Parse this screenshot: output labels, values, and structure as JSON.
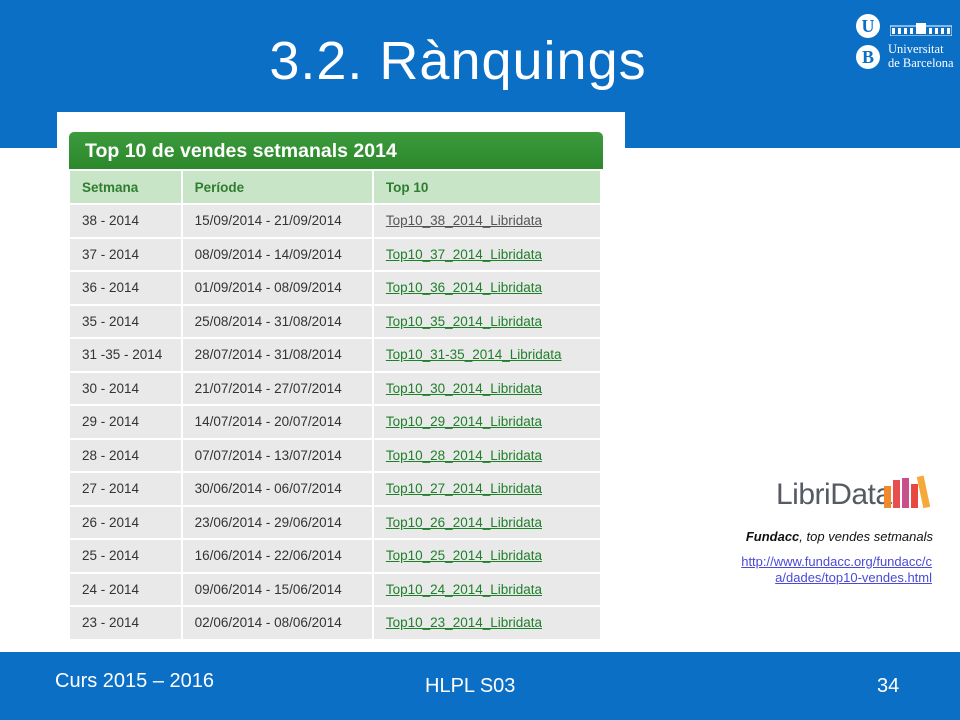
{
  "slide": {
    "title": "3.2. Rànquings",
    "logo": {
      "letters": [
        "U",
        "B"
      ],
      "text_line1": "Universitat",
      "text_line2": "de Barcelona",
      "icon": "university-building-icon"
    }
  },
  "screenshot": {
    "header": "Top 10 de vendes setmanals 2014",
    "columns": [
      "Setmana",
      "Període",
      "Top 10"
    ],
    "rows": [
      [
        "38 - 2014",
        "15/09/2014 - 21/09/2014",
        "Top10_38_2014_Libridata"
      ],
      [
        "37 - 2014",
        "08/09/2014 - 14/09/2014",
        "Top10_37_2014_Libridata"
      ],
      [
        "36 - 2014",
        "01/09/2014 - 08/09/2014",
        "Top10_36_2014_Libridata"
      ],
      [
        "35 - 2014",
        "25/08/2014 - 31/08/2014",
        "Top10_35_2014_Libridata"
      ],
      [
        "31 -35 - 2014",
        "28/07/2014 - 31/08/2014",
        "Top10_31-35_2014_Libridata"
      ],
      [
        "30 - 2014",
        "21/07/2014 - 27/07/2014",
        "Top10_30_2014_Libridata"
      ],
      [
        "29 - 2014",
        "14/07/2014 - 20/07/2014",
        "Top10_29_2014_Libridata"
      ],
      [
        "28 - 2014",
        "07/07/2014 - 13/07/2014",
        "Top10_28_2014_Libridata"
      ],
      [
        "27 - 2014",
        "30/06/2014 - 06/07/2014",
        "Top10_27_2014_Libridata"
      ],
      [
        "26 - 2014",
        "23/06/2014 - 29/06/2014",
        "Top10_26_2014_Libridata"
      ],
      [
        "25 - 2014",
        "16/06/2014 - 22/06/2014",
        "Top10_25_2014_Libridata"
      ],
      [
        "24 - 2014",
        "09/06/2014 - 15/06/2014",
        "Top10_24_2014_Libridata"
      ],
      [
        "23 - 2014",
        "02/06/2014 - 08/06/2014",
        "Top10_23_2014_Libridata"
      ]
    ]
  },
  "libridata": {
    "logo_text": "LibriData",
    "icon": "books-icon",
    "caption_bold": "Fundacc",
    "caption_rest": ", top vendes setmanals",
    "link_line1": "http://www.fundacc.org/fundacc/c",
    "link_line2": "a/dades/top10-vendes.html"
  },
  "footer": {
    "course": "Curs 2015 – 2016",
    "subject": "HLPL S03",
    "page": "34"
  },
  "colors": {
    "brand_blue": "#0b6fc6",
    "table_header_green": "#2b882b",
    "link_green": "#1f7f2a"
  }
}
